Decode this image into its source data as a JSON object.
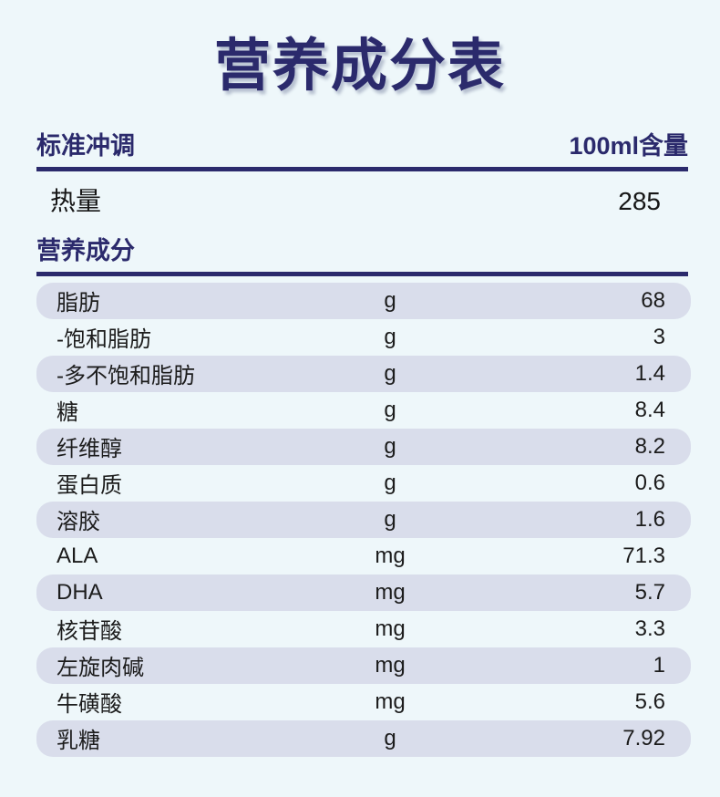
{
  "page": {
    "title": "营养成分表",
    "background_color": "#eef7fa",
    "accent_color": "#2b2a6c",
    "row_shade_color": "#d9ddeb"
  },
  "header": {
    "left_label": "标准冲调",
    "right_label": "100ml含量"
  },
  "energy": {
    "label": "热量",
    "value": "285"
  },
  "section": {
    "title": "营养成分"
  },
  "table": {
    "rows": [
      {
        "label": "脂肪",
        "unit": "g",
        "value": "68"
      },
      {
        "label": "-饱和脂肪",
        "unit": "g",
        "value": "3"
      },
      {
        "label": "-多不饱和脂肪",
        "unit": "g",
        "value": "1.4"
      },
      {
        "label": "糖",
        "unit": "g",
        "value": "8.4"
      },
      {
        "label": "纤维醇",
        "unit": "g",
        "value": "8.2"
      },
      {
        "label": "蛋白质",
        "unit": "g",
        "value": "0.6"
      },
      {
        "label": "溶胶",
        "unit": "g",
        "value": "1.6"
      },
      {
        "label": "ALA",
        "unit": "mg",
        "value": "71.3"
      },
      {
        "label": "DHA",
        "unit": "mg",
        "value": "5.7"
      },
      {
        "label": "核苷酸",
        "unit": "mg",
        "value": "3.3"
      },
      {
        "label": "左旋肉碱",
        "unit": "mg",
        "value": "1"
      },
      {
        "label": "牛磺酸",
        "unit": "mg",
        "value": "5.6"
      },
      {
        "label": "乳糖",
        "unit": "g",
        "value": "7.92"
      }
    ]
  }
}
